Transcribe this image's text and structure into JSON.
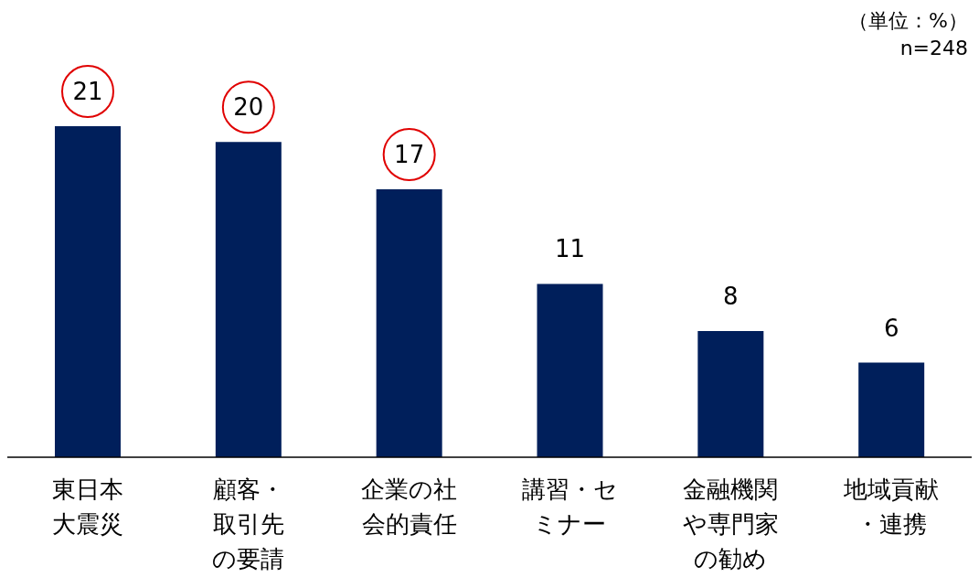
{
  "chart_data": {
    "type": "bar",
    "categories": [
      "東日本大震災",
      "顧客・取引先の要請",
      "企業の社会的責任",
      "講習・セミナー",
      "金融機関や専門家の勧め",
      "地域貢献・連携"
    ],
    "values": [
      21,
      20,
      17,
      11,
      8,
      6
    ],
    "color": "#001f5b",
    "data_labels": true,
    "annotations": [
      "（単位：%）",
      "n=248"
    ]
  }
}
